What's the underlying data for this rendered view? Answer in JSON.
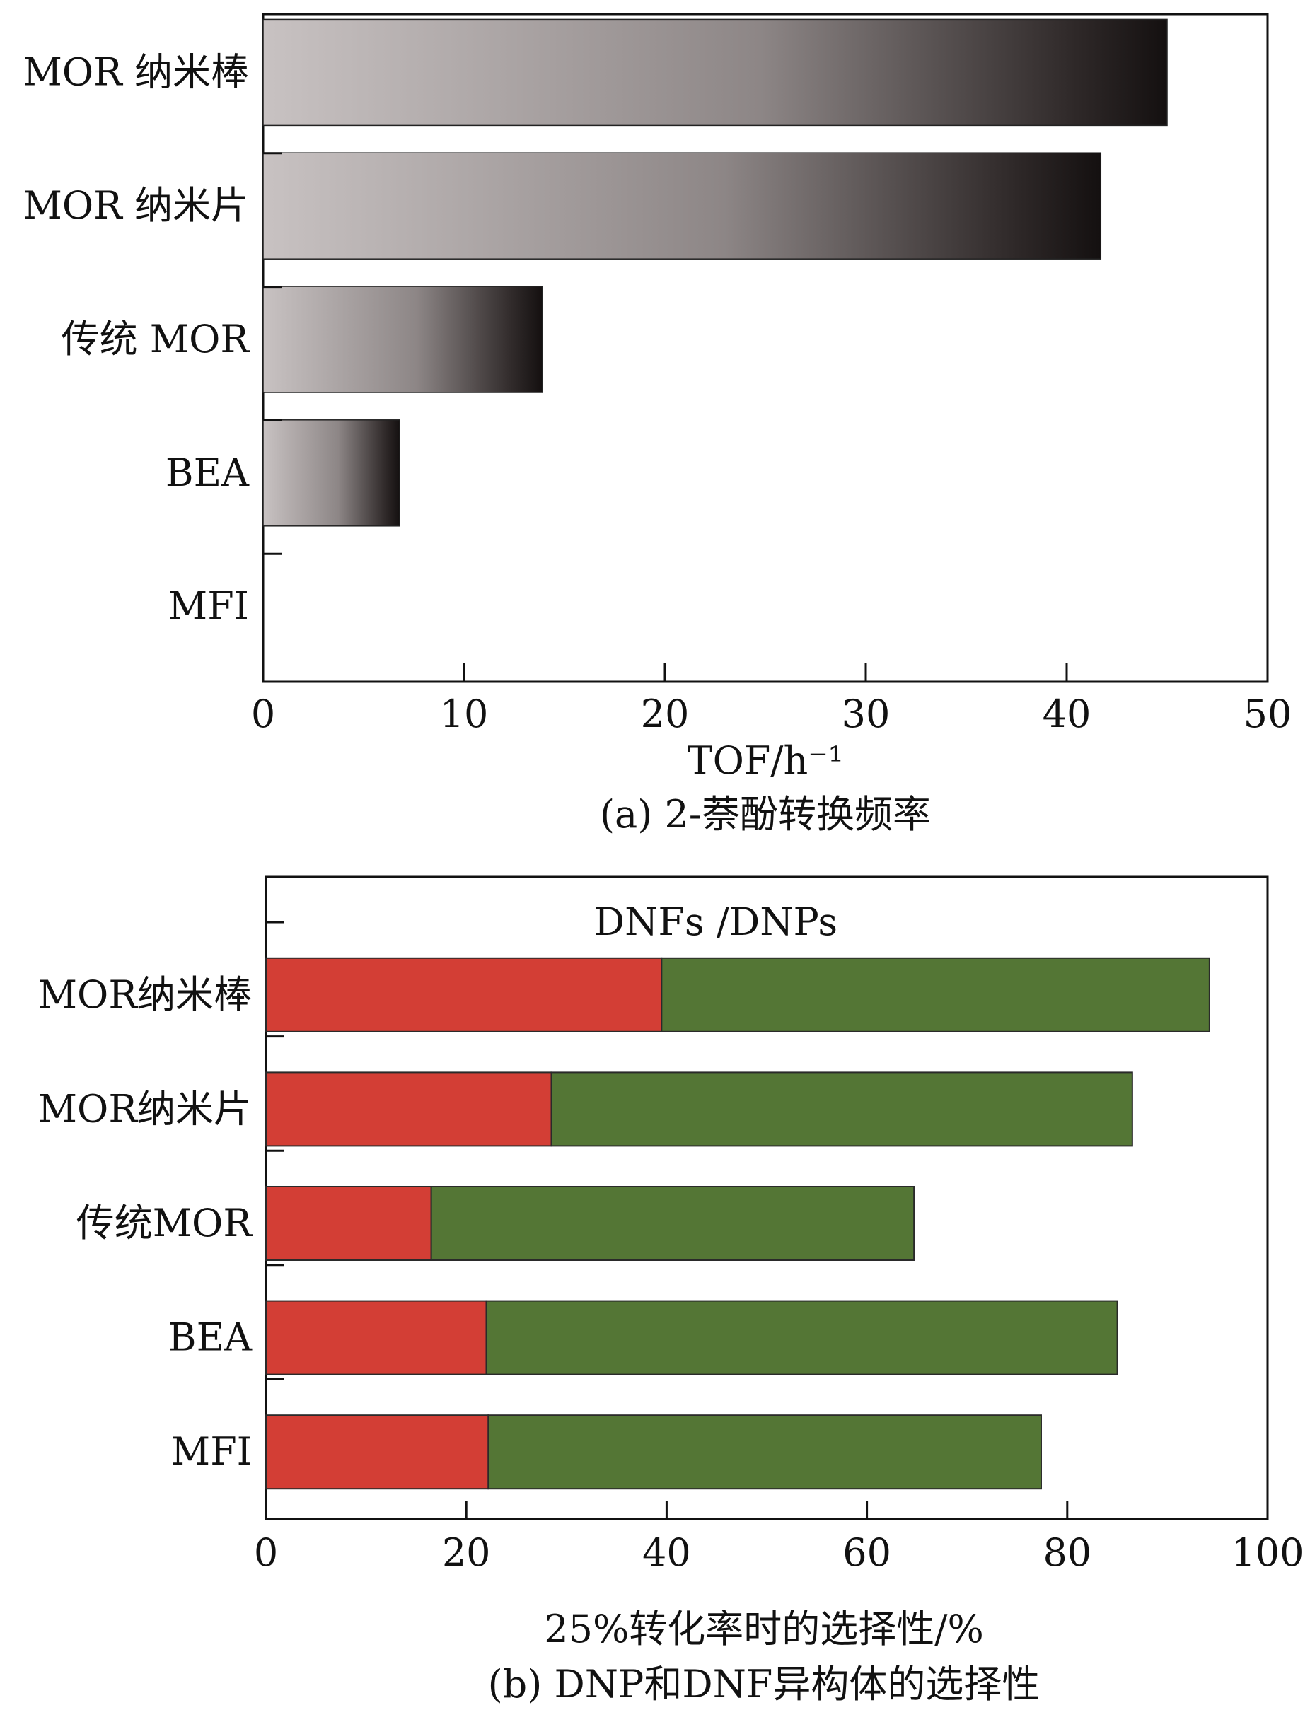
{
  "chart_data": [
    {
      "type": "bar",
      "orientation": "horizontal",
      "categories": [
        "MOR 纳米棒",
        "MOR 纳米片",
        "传统 MOR",
        "BEA",
        "MFI"
      ],
      "values": [
        45,
        41.7,
        13.9,
        6.8,
        0
      ],
      "xlabel": "TOF/h⁻¹",
      "caption": "(a) 2-萘酚转换频率",
      "xlim": [
        0,
        50
      ],
      "xticks": [
        0,
        10,
        20,
        30,
        40,
        50
      ],
      "grid": false,
      "colors": {
        "bar_light": "#c8c2c2",
        "bar_dark": "#141010"
      }
    },
    {
      "type": "bar",
      "orientation": "horizontal",
      "stacked": true,
      "categories": [
        "MOR纳米棒",
        "MOR纳米片",
        "传统MOR",
        "BEA",
        "MFI"
      ],
      "series": [
        {
          "values": [
            39.5,
            28.5,
            16.5,
            22,
            22.2
          ],
          "color": "#d33e35"
        },
        {
          "values": [
            54.7,
            58,
            48.2,
            63,
            55.2
          ],
          "color": "#547635"
        }
      ],
      "annotation": "DNFs /DNPs",
      "xlabel": "25%转化率时的选择性/%",
      "caption": "(b) DNP和DNF异构体的选择性",
      "xlim": [
        0,
        100
      ],
      "xticks": [
        0,
        20,
        40,
        60,
        80,
        100
      ],
      "grid": false
    }
  ]
}
